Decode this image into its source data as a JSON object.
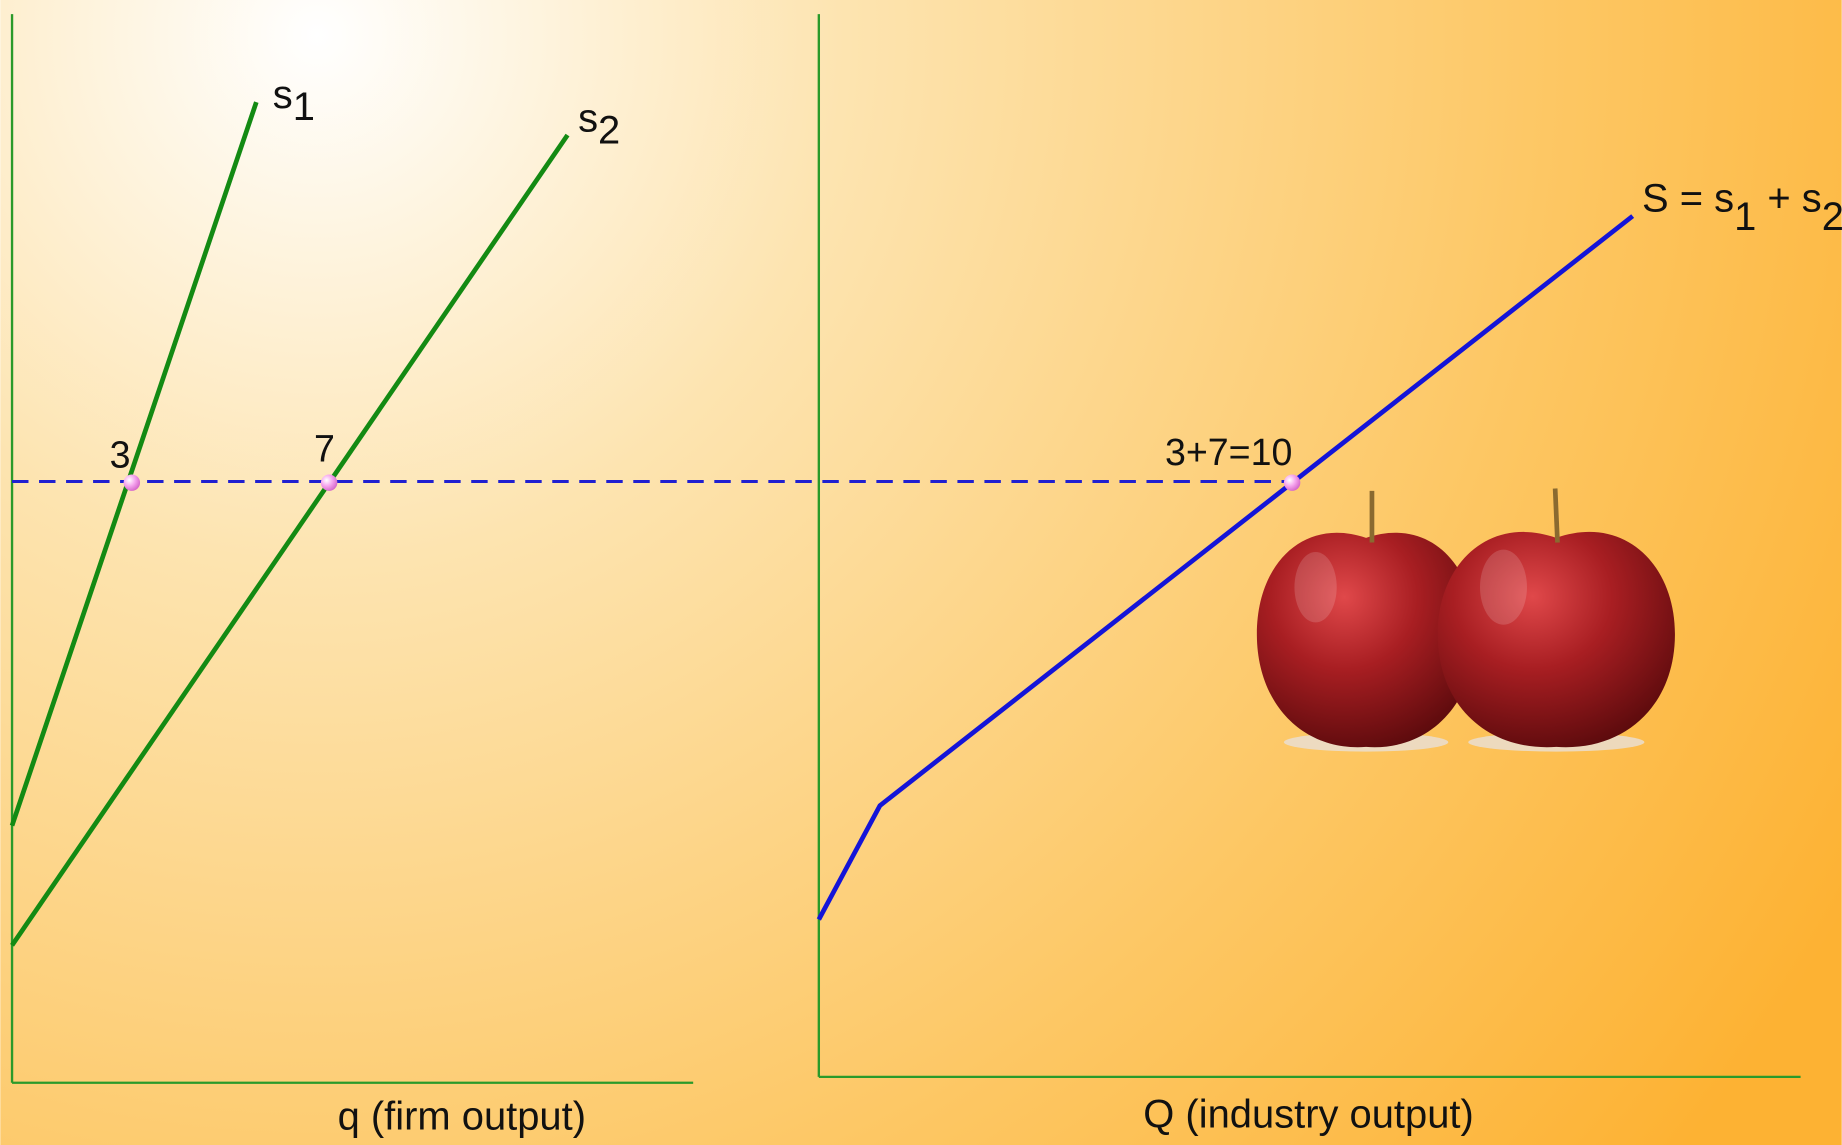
{
  "firm_panel": {
    "curves": [
      {
        "name": "s",
        "subscript": "1",
        "point_label": "3"
      },
      {
        "name": "s",
        "subscript": "2",
        "point_label": "7"
      }
    ],
    "x_axis_label": "q (firm output)"
  },
  "industry_panel": {
    "curve_label": {
      "text": "S = s",
      "sub1": "1",
      "plus": " + s",
      "sub2": "2"
    },
    "point_label": "3+7=10",
    "x_axis_label": "Q (industry output)"
  }
}
